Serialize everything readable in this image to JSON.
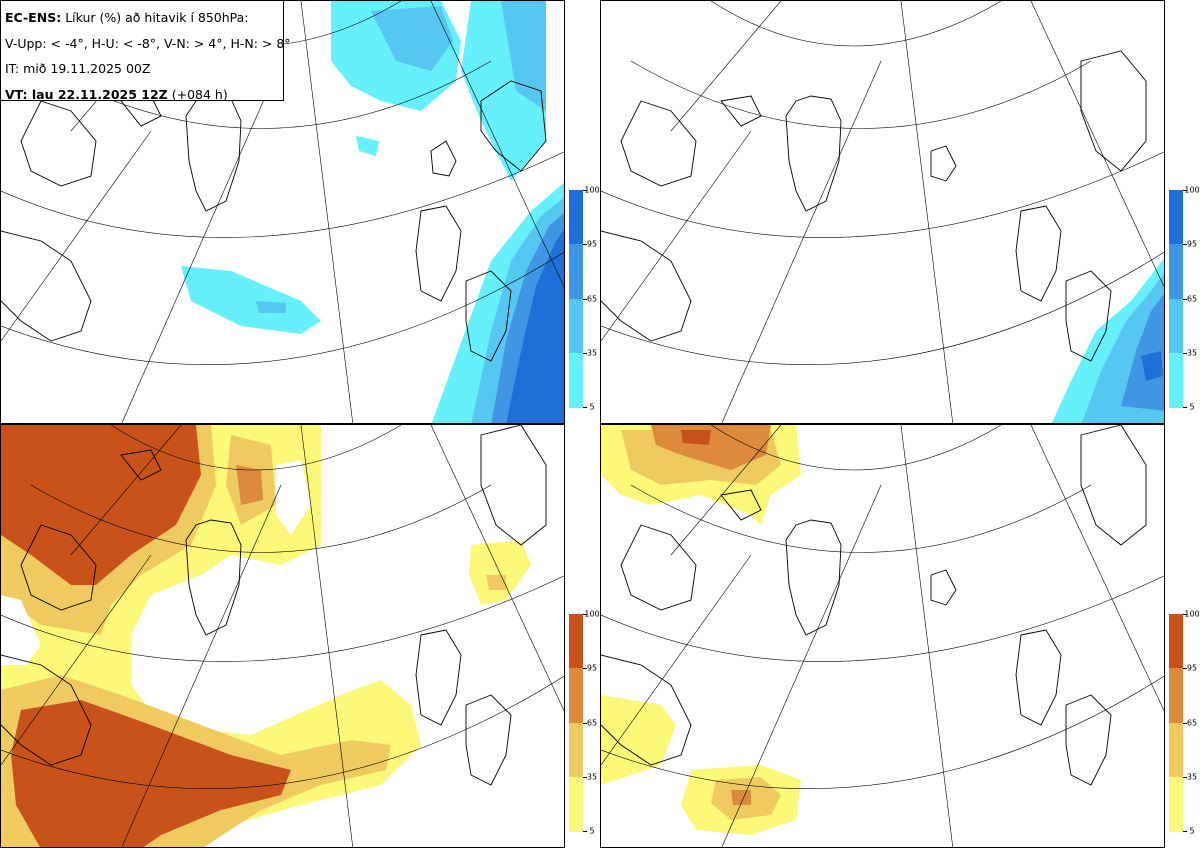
{
  "header": {
    "model": "EC-ENS:",
    "title_rest": "Líkur (%) að hitavik í 850hPa:",
    "categories_line": "V-Upp: < -4°, H-U: < -8°, V-N: > 4°, H-N: > 8°",
    "init_time": "IT: mið 19.11.2025 00Z",
    "valid_label": "VT: lau 22.11.2025 12Z",
    "lead": "(+084 h)"
  },
  "panels": [
    {
      "id": "cold-4",
      "category": "V-Upp",
      "palette": "blue"
    },
    {
      "id": "cold-8",
      "category": "H-U",
      "palette": "blue"
    },
    {
      "id": "warm-4",
      "category": "V-N",
      "palette": "orange"
    },
    {
      "id": "warm-8",
      "category": "H-N",
      "palette": "orange"
    }
  ],
  "colorbar": {
    "labels": [
      "100",
      "95",
      "65",
      "35",
      "5"
    ],
    "blue_colors": [
      "#1f6fd8",
      "#3f97e3",
      "#56c7f0",
      "#66f0fb"
    ],
    "orange_colors": [
      "#c8531a",
      "#de8a3c",
      "#efca60",
      "#fbf87a"
    ]
  }
}
